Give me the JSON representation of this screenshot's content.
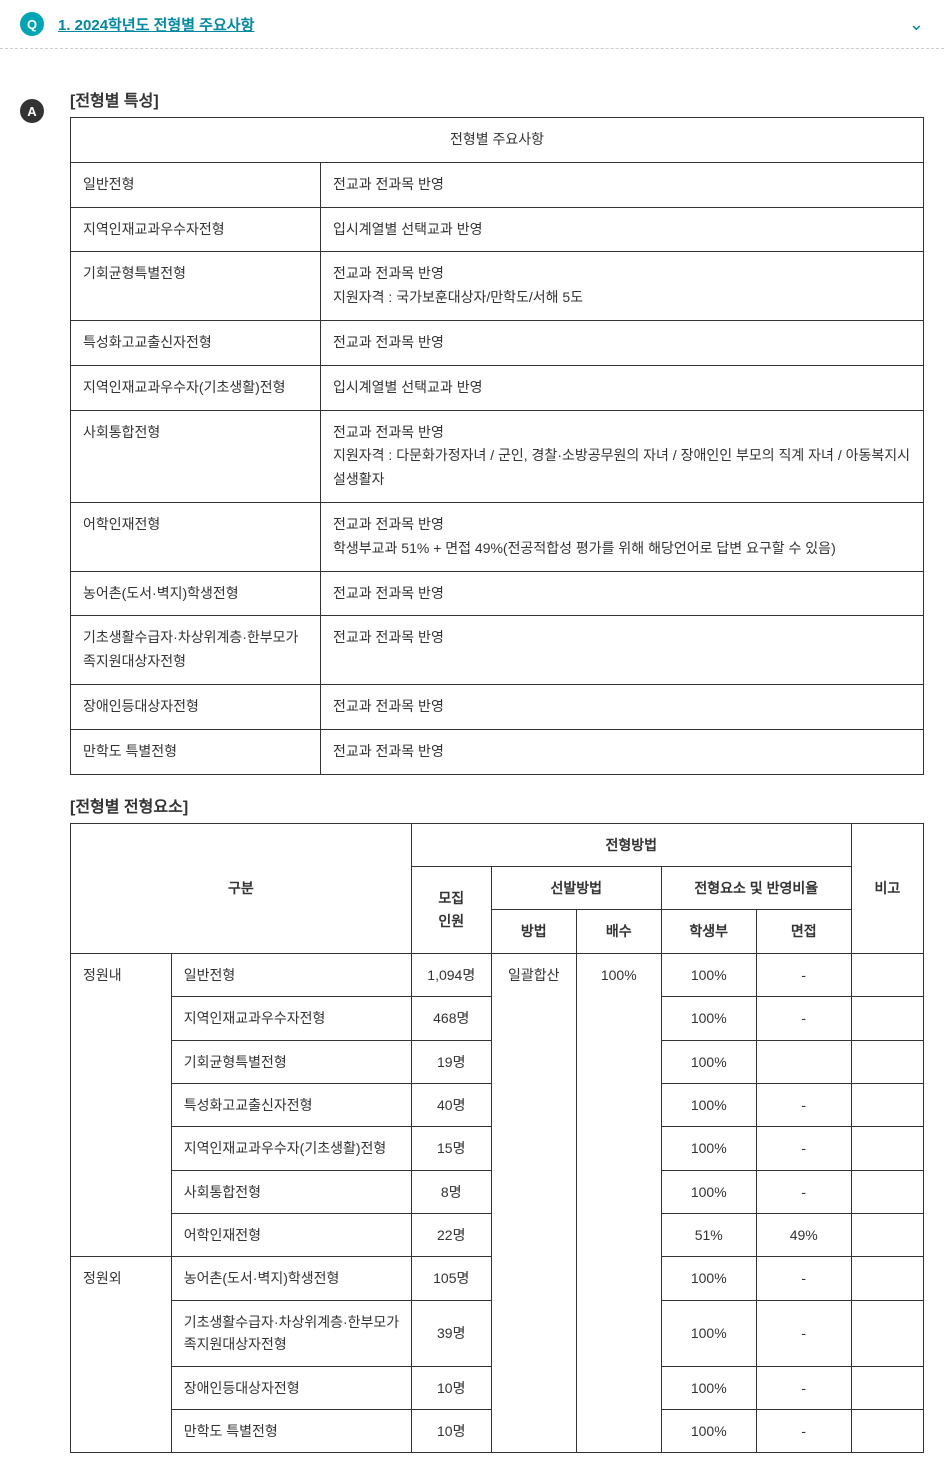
{
  "header": {
    "q_label": "Q",
    "title": "1. 2024학년도 전형별 주요사항",
    "chevron": "⌄"
  },
  "answer_badge": "A",
  "section1": {
    "title": "[전형별 특성]",
    "table_header": "전형별 주요사항",
    "rows": [
      {
        "name": "일반전형",
        "desc": "전교과 전과목 반영"
      },
      {
        "name": "지역인재교과우수자전형",
        "desc": "입시계열별 선택교과 반영"
      },
      {
        "name": "기회균형특별전형",
        "desc": "전교과 전과목 반영\n지원자격 : 국가보훈대상자/만학도/서해 5도"
      },
      {
        "name": "특성화고교출신자전형",
        "desc": "전교과 전과목 반영"
      },
      {
        "name": "지역인재교과우수자(기초생활)전형",
        "desc": "입시계열별 선택교과 반영"
      },
      {
        "name": "사회통합전형",
        "desc": "전교과 전과목 반영\n지원자격 : 다문화가정자녀 / 군인, 경찰·소방공무원의 자녀 / 장애인인 부모의 직계 자녀 / 아동복지시설생활자"
      },
      {
        "name": "어학인재전형",
        "desc": "전교과 전과목 반영\n학생부교과 51% + 면접 49%(전공적합성 평가를 위해 해당언어로 답변 요구할 수 있음)"
      },
      {
        "name": "농어촌(도서·벽지)학생전형",
        "desc": "전교과 전과목 반영"
      },
      {
        "name": "기초생활수급자·차상위계층·한부모가족지원대상자전형",
        "desc": "전교과 전과목 반영"
      },
      {
        "name": "장애인등대상자전형",
        "desc": "전교과 전과목 반영"
      },
      {
        "name": "만학도 특별전형",
        "desc": "전교과 전과목 반영"
      }
    ]
  },
  "section2": {
    "title": "[전형별 전형요소]",
    "headers": {
      "division": "구분",
      "method_group": "전형방법",
      "remark": "비고",
      "count": "모집\n인원",
      "selection": "선발방법",
      "ratio": "전형요소 및 반영비율",
      "sel_method": "방법",
      "sel_mult": "배수",
      "ratio_record": "학생부",
      "ratio_interview": "면접"
    },
    "shared": {
      "method": "일괄합산",
      "multiplier": "100%"
    },
    "groups": [
      {
        "category": "정원내",
        "rows": [
          {
            "name": "일반전형",
            "count": "1,094명",
            "record": "100%",
            "interview": "-"
          },
          {
            "name": "지역인재교과우수자전형",
            "count": "468명",
            "record": "100%",
            "interview": "-"
          },
          {
            "name": "기회균형특별전형",
            "count": "19명",
            "record": "100%",
            "interview": ""
          },
          {
            "name": "특성화고교출신자전형",
            "count": "40명",
            "record": "100%",
            "interview": "-"
          },
          {
            "name": "지역인재교과우수자(기초생활)전형",
            "count": "15명",
            "record": "100%",
            "interview": "-"
          },
          {
            "name": "사회통합전형",
            "count": "8명",
            "record": "100%",
            "interview": "-"
          },
          {
            "name": "어학인재전형",
            "count": "22명",
            "record": "51%",
            "interview": "49%"
          }
        ]
      },
      {
        "category": "정원외",
        "rows": [
          {
            "name": "농어촌(도서·벽지)학생전형",
            "count": "105명",
            "record": "100%",
            "interview": "-"
          },
          {
            "name": "기초생활수급자·차상위계층·한부모가족지원대상자전형",
            "count": "39명",
            "record": "100%",
            "interview": "-"
          },
          {
            "name": "장애인등대상자전형",
            "count": "10명",
            "record": "100%",
            "interview": "-"
          },
          {
            "name": "만학도 특별전형",
            "count": "10명",
            "record": "100%",
            "interview": "-"
          }
        ]
      }
    ]
  },
  "style": {
    "accent_color": "#00a5b5",
    "title_color": "#0088a0",
    "border_color": "#333333",
    "font_size_body": 14,
    "font_size_title": 16
  }
}
